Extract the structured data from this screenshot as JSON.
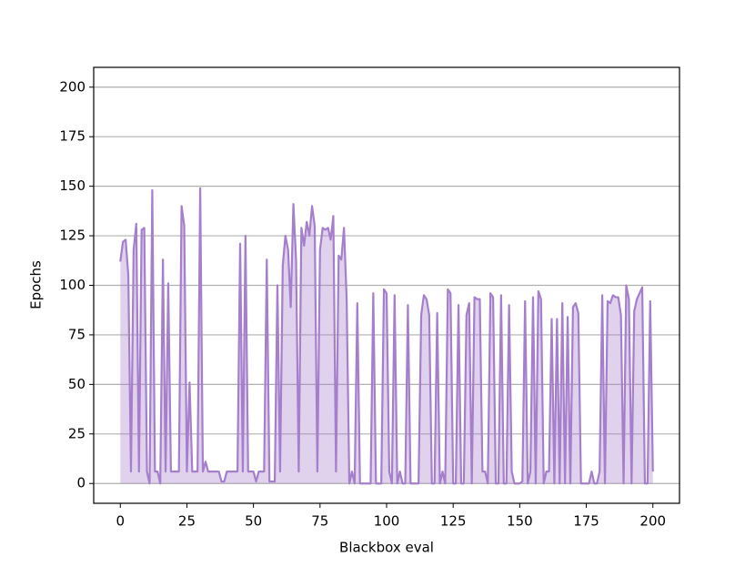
{
  "chart_data": {
    "type": "area",
    "xlabel": "Blackbox eval",
    "ylabel": "Epochs",
    "color": "#a57fcb",
    "grid": true,
    "xlim": [
      -10,
      210
    ],
    "ylim": [
      -10,
      210
    ],
    "xticks": [
      0,
      25,
      50,
      75,
      100,
      125,
      150,
      175,
      200
    ],
    "yticks": [
      0,
      25,
      50,
      75,
      100,
      125,
      150,
      175,
      200
    ],
    "x": [
      0,
      1,
      2,
      3,
      4,
      5,
      6,
      7,
      8,
      9,
      10,
      11,
      12,
      13,
      14,
      15,
      16,
      17,
      18,
      19,
      20,
      21,
      22,
      23,
      24,
      25,
      26,
      27,
      28,
      29,
      30,
      31,
      32,
      33,
      34,
      35,
      36,
      37,
      38,
      39,
      40,
      41,
      42,
      43,
      44,
      45,
      46,
      47,
      48,
      49,
      50,
      51,
      52,
      53,
      54,
      55,
      56,
      57,
      58,
      59,
      60,
      61,
      62,
      63,
      64,
      65,
      66,
      67,
      68,
      69,
      70,
      71,
      72,
      73,
      74,
      75,
      76,
      77,
      78,
      79,
      80,
      81,
      82,
      83,
      84,
      85,
      86,
      87,
      88,
      89,
      90,
      91,
      92,
      93,
      94,
      95,
      96,
      97,
      98,
      99,
      100,
      101,
      102,
      103,
      104,
      105,
      106,
      107,
      108,
      109,
      110,
      111,
      112,
      113,
      114,
      115,
      116,
      117,
      118,
      119,
      120,
      121,
      122,
      123,
      124,
      125,
      126,
      127,
      128,
      129,
      130,
      131,
      132,
      133,
      134,
      135,
      136,
      137,
      138,
      139,
      140,
      141,
      142,
      143,
      144,
      145,
      146,
      147,
      148,
      149,
      150,
      151,
      152,
      153,
      154,
      155,
      156,
      157,
      158,
      159,
      160,
      161,
      162,
      163,
      164,
      165,
      166,
      167,
      168,
      169,
      170,
      171,
      172,
      173,
      174,
      175,
      176,
      177,
      178,
      179,
      180,
      181,
      182,
      183,
      184,
      185,
      186,
      187,
      188,
      189,
      190,
      191,
      192,
      193,
      194,
      195,
      196,
      197,
      198,
      199,
      200
    ],
    "values": [
      112,
      122,
      123,
      105,
      6,
      118,
      131,
      6,
      128,
      129,
      6,
      0,
      148,
      6,
      6,
      0,
      113,
      6,
      101,
      6,
      6,
      6,
      6,
      140,
      130,
      6,
      51,
      6,
      6,
      6,
      149,
      6,
      11,
      6,
      6,
      6,
      6,
      6,
      1,
      1,
      6,
      6,
      6,
      6,
      6,
      121,
      6,
      125,
      6,
      6,
      6,
      1,
      6,
      6,
      6,
      113,
      1,
      1,
      1,
      100,
      6,
      110,
      125,
      118,
      89,
      141,
      113,
      6,
      129,
      120,
      132,
      125,
      140,
      130,
      6,
      118,
      129,
      128,
      129,
      123,
      135,
      6,
      115,
      113,
      129,
      93,
      0,
      6,
      0,
      91,
      0,
      0,
      0,
      0,
      0,
      96,
      0,
      0,
      0,
      98,
      96,
      6,
      0,
      95,
      0,
      6,
      0,
      0,
      90,
      0,
      0,
      0,
      0,
      85,
      95,
      93,
      85,
      0,
      0,
      86,
      0,
      6,
      0,
      98,
      96,
      0,
      0,
      90,
      0,
      0,
      85,
      91,
      0,
      94,
      93,
      93,
      6,
      6,
      0,
      96,
      94,
      0,
      0,
      95,
      0,
      0,
      90,
      6,
      0,
      0,
      0,
      1,
      92,
      0,
      6,
      94,
      0,
      97,
      93,
      0,
      6,
      6,
      83,
      0,
      83,
      0,
      91,
      0,
      84,
      0,
      89,
      91,
      86,
      0,
      0,
      0,
      0,
      6,
      0,
      0,
      6,
      95,
      0,
      92,
      91,
      95,
      94,
      94,
      85,
      0,
      100,
      93,
      0,
      87,
      93,
      96,
      99,
      0,
      0,
      92,
      6
    ]
  }
}
